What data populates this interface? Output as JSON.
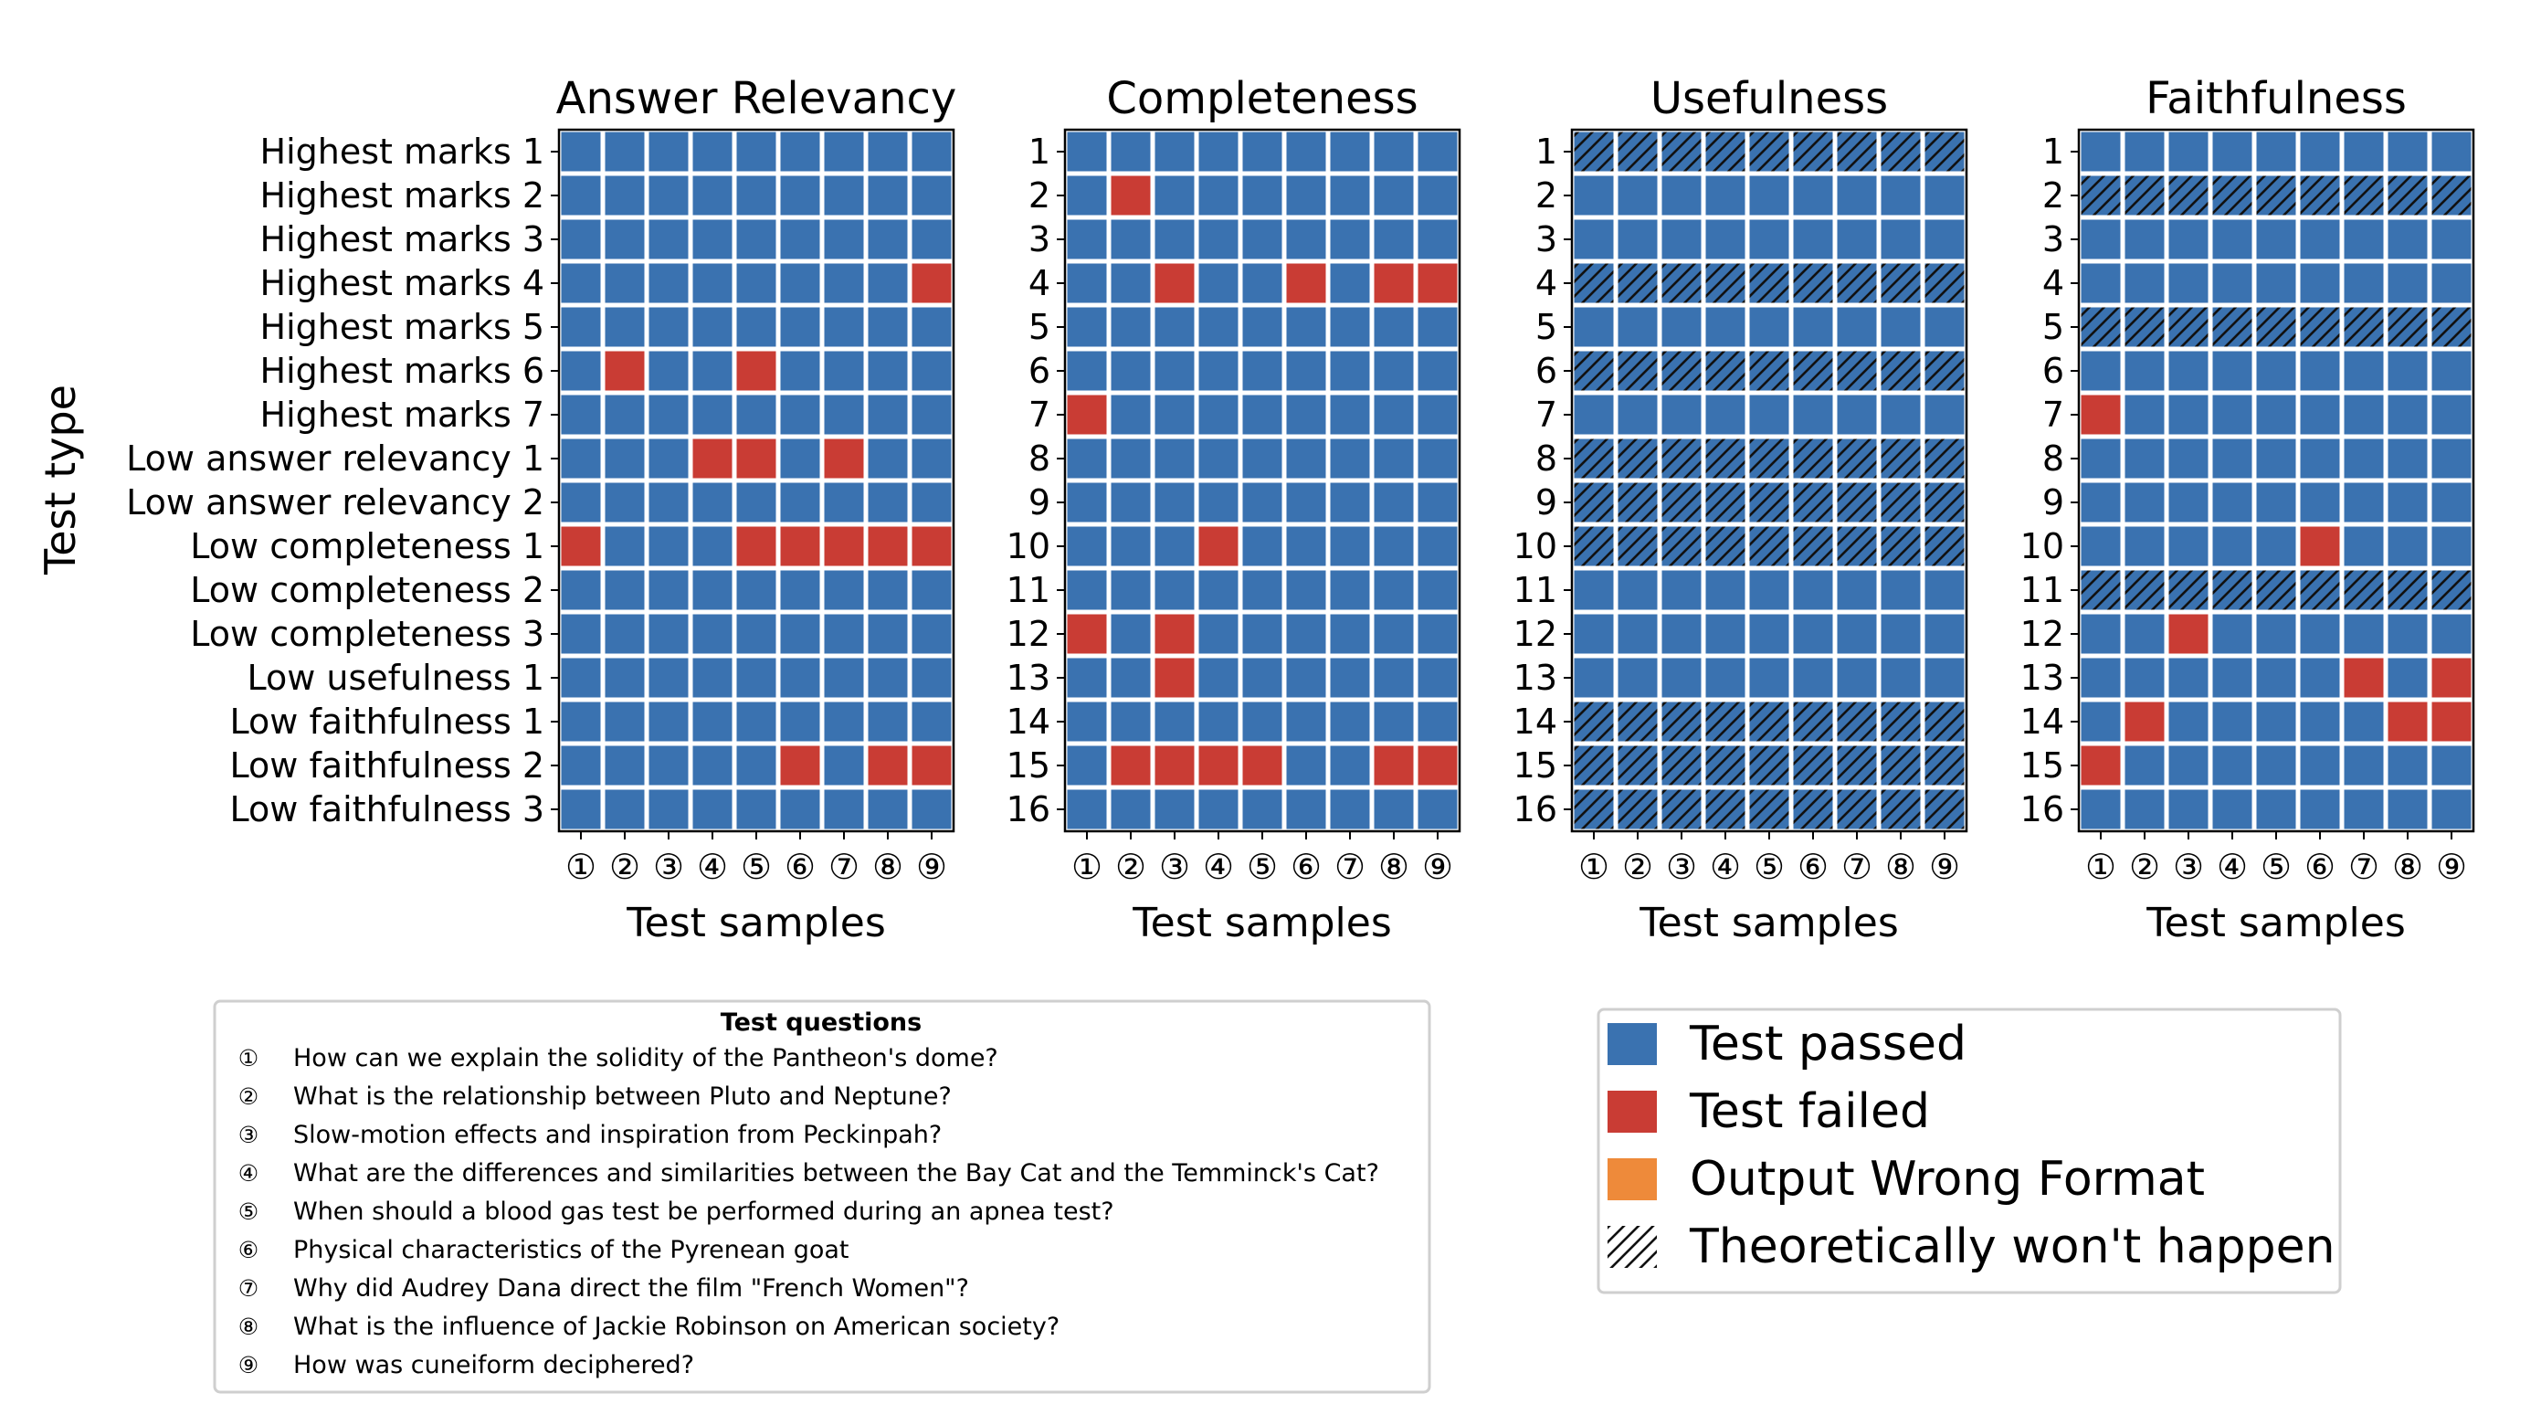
{
  "colors": {
    "passed": "#3a72b0",
    "failed": "#c93c34",
    "wrong_format": "#ee8a3a",
    "grid": "#ffffff"
  },
  "y_axis_label": "Test type",
  "x_axis_label": "Test samples",
  "x_ticks": [
    "①",
    "②",
    "③",
    "④",
    "⑤",
    "⑥",
    "⑦",
    "⑧",
    "⑨"
  ],
  "chart_data": [
    {
      "type": "heatmap",
      "title": "Answer Relevancy",
      "xlabel": "Test samples",
      "ylabel": "Test type",
      "rows": [
        "Highest marks 1",
        "Highest marks 2",
        "Highest marks 3",
        "Highest marks 4",
        "Highest marks 5",
        "Highest marks 6",
        "Highest marks 7",
        "Low answer relevancy 1",
        "Low answer relevancy 2",
        "Low completeness 1",
        "Low completeness 2",
        "Low completeness 3",
        "Low usefulness 1",
        "Low faithfulness 1",
        "Low faithfulness 2",
        "Low faithfulness 3"
      ],
      "cols": [
        "①",
        "②",
        "③",
        "④",
        "⑤",
        "⑥",
        "⑦",
        "⑧",
        "⑨"
      ],
      "failed": [
        [
          4,
          9
        ],
        [
          6,
          2
        ],
        [
          6,
          5
        ],
        [
          8,
          4
        ],
        [
          8,
          5
        ],
        [
          8,
          7
        ],
        [
          10,
          1
        ],
        [
          10,
          5
        ],
        [
          10,
          6
        ],
        [
          10,
          7
        ],
        [
          10,
          8
        ],
        [
          10,
          9
        ],
        [
          15,
          6
        ],
        [
          15,
          8
        ],
        [
          15,
          9
        ]
      ],
      "hatched_rows": []
    },
    {
      "type": "heatmap",
      "title": "Completeness",
      "xlabel": "Test samples",
      "rows": [
        "1",
        "2",
        "3",
        "4",
        "5",
        "6",
        "7",
        "8",
        "9",
        "10",
        "11",
        "12",
        "13",
        "14",
        "15",
        "16"
      ],
      "cols": [
        "①",
        "②",
        "③",
        "④",
        "⑤",
        "⑥",
        "⑦",
        "⑧",
        "⑨"
      ],
      "failed": [
        [
          2,
          2
        ],
        [
          4,
          3
        ],
        [
          4,
          6
        ],
        [
          4,
          8
        ],
        [
          4,
          9
        ],
        [
          7,
          1
        ],
        [
          10,
          4
        ],
        [
          12,
          1
        ],
        [
          12,
          3
        ],
        [
          13,
          3
        ],
        [
          15,
          2
        ],
        [
          15,
          3
        ],
        [
          15,
          4
        ],
        [
          15,
          5
        ],
        [
          15,
          8
        ],
        [
          15,
          9
        ]
      ],
      "hatched_rows": []
    },
    {
      "type": "heatmap",
      "title": "Usefulness",
      "xlabel": "Test samples",
      "rows": [
        "1",
        "2",
        "3",
        "4",
        "5",
        "6",
        "7",
        "8",
        "9",
        "10",
        "11",
        "12",
        "13",
        "14",
        "15",
        "16"
      ],
      "cols": [
        "①",
        "②",
        "③",
        "④",
        "⑤",
        "⑥",
        "⑦",
        "⑧",
        "⑨"
      ],
      "failed": [],
      "hatched_rows": [
        1,
        4,
        6,
        8,
        9,
        10,
        14,
        15,
        16
      ]
    },
    {
      "type": "heatmap",
      "title": "Faithfulness",
      "xlabel": "Test samples",
      "rows": [
        "1",
        "2",
        "3",
        "4",
        "5",
        "6",
        "7",
        "8",
        "9",
        "10",
        "11",
        "12",
        "13",
        "14",
        "15",
        "16"
      ],
      "cols": [
        "①",
        "②",
        "③",
        "④",
        "⑤",
        "⑥",
        "⑦",
        "⑧",
        "⑨"
      ],
      "failed": [
        [
          7,
          1
        ],
        [
          10,
          6
        ],
        [
          12,
          3
        ],
        [
          13,
          7
        ],
        [
          13,
          9
        ],
        [
          14,
          2
        ],
        [
          14,
          8
        ],
        [
          14,
          9
        ],
        [
          15,
          1
        ]
      ],
      "hatched_rows": [
        2,
        5,
        11
      ]
    }
  ],
  "questions": {
    "title": "Test questions",
    "items": [
      {
        "num": "①",
        "text": "How can we explain the solidity of the Pantheon's dome?"
      },
      {
        "num": "②",
        "text": "What is the relationship between Pluto and Neptune?"
      },
      {
        "num": "③",
        "text": "Slow-motion effects and inspiration from Peckinpah?"
      },
      {
        "num": "④",
        "text": "What are the differences and similarities between the Bay Cat and the Temminck's Cat?"
      },
      {
        "num": "⑤",
        "text": "When should a blood gas test be performed during an apnea test?"
      },
      {
        "num": "⑥",
        "text": "Physical characteristics of the Pyrenean goat"
      },
      {
        "num": "⑦",
        "text": "Why did Audrey Dana direct the film \"French Women\"?"
      },
      {
        "num": "⑧",
        "text": "What is the influence of Jackie Robinson on American society?"
      },
      {
        "num": "⑨",
        "text": "How was cuneiform deciphered?"
      }
    ]
  },
  "legend": {
    "items": [
      {
        "label": "Test passed",
        "kind": "passed"
      },
      {
        "label": "Test failed",
        "kind": "failed"
      },
      {
        "label": "Output Wrong Format",
        "kind": "wrong_format"
      },
      {
        "label": "Theoretically won't happen",
        "kind": "hatch"
      }
    ]
  }
}
